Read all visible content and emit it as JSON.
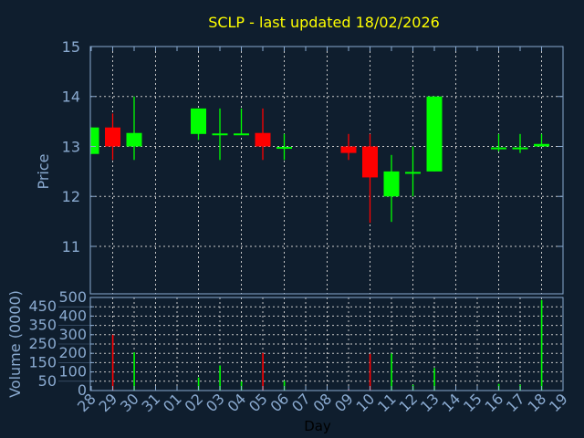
{
  "chart_data": [
    {
      "type": "candlestick",
      "title": "SCLP - last updated 18/02/2026",
      "ylabel": "Price",
      "ylim": [
        10.05,
        15
      ],
      "yticks": [
        11,
        12,
        13,
        14,
        15
      ],
      "grid": true,
      "x_categories": [
        "28",
        "29",
        "30",
        "31",
        "01",
        "02",
        "03",
        "04",
        "05",
        "06",
        "07",
        "08",
        "09",
        "10",
        "11",
        "12",
        "13",
        "14",
        "15",
        "16",
        "17",
        "18",
        "19"
      ],
      "candles": [
        {
          "day": "28",
          "open": 12.85,
          "high": 13.38,
          "low": 12.85,
          "close": 13.38
        },
        {
          "day": "29",
          "open": 13.38,
          "high": 13.66,
          "low": 12.73,
          "close": 13.0
        },
        {
          "day": "30",
          "open": 13.0,
          "high": 14.0,
          "low": 12.73,
          "close": 13.27
        },
        {
          "day": "02",
          "open": 13.25,
          "high": 13.76,
          "low": 13.13,
          "close": 13.76
        },
        {
          "day": "03",
          "open": 13.24,
          "high": 13.76,
          "low": 12.73,
          "close": 13.26
        },
        {
          "day": "04",
          "open": 13.24,
          "high": 13.76,
          "low": 13.24,
          "close": 13.26
        },
        {
          "day": "05",
          "open": 13.27,
          "high": 13.76,
          "low": 12.73,
          "close": 13.0
        },
        {
          "day": "06",
          "open": 12.97,
          "high": 13.25,
          "low": 12.73,
          "close": 12.99
        },
        {
          "day": "09",
          "open": 13.0,
          "high": 13.25,
          "low": 12.73,
          "close": 12.87
        },
        {
          "day": "10",
          "open": 13.0,
          "high": 13.25,
          "low": 11.47,
          "close": 12.38
        },
        {
          "day": "11",
          "open": 12.0,
          "high": 12.83,
          "low": 11.49,
          "close": 12.5
        },
        {
          "day": "12",
          "open": 12.47,
          "high": 13.0,
          "low": 12.0,
          "close": 12.49
        },
        {
          "day": "13",
          "open": 12.5,
          "high": 14.0,
          "low": 12.5,
          "close": 14.0
        },
        {
          "day": "16",
          "open": 12.96,
          "high": 13.25,
          "low": 12.9,
          "close": 12.98
        },
        {
          "day": "17",
          "open": 12.96,
          "high": 13.25,
          "low": 12.87,
          "close": 12.98
        },
        {
          "day": "18",
          "open": 13.0,
          "high": 13.25,
          "low": 13.0,
          "close": 13.05
        }
      ]
    },
    {
      "type": "bar",
      "ylabel": "Volume (0000)",
      "xlabel": "Day",
      "ylim": [
        0,
        500
      ],
      "yticks": [
        0,
        50,
        100,
        150,
        200,
        250,
        300,
        350,
        400,
        450,
        500
      ],
      "grid": true,
      "bars": [
        {
          "day": "29",
          "value": 300,
          "color": "red"
        },
        {
          "day": "30",
          "value": 205,
          "color": "green"
        },
        {
          "day": "02",
          "value": 70,
          "color": "green"
        },
        {
          "day": "03",
          "value": 135,
          "color": "green"
        },
        {
          "day": "04",
          "value": 49,
          "color": "green"
        },
        {
          "day": "05",
          "value": 202,
          "color": "red"
        },
        {
          "day": "06",
          "value": 52,
          "color": "green"
        },
        {
          "day": "09",
          "value": 7,
          "color": "red"
        },
        {
          "day": "10",
          "value": 197,
          "color": "red"
        },
        {
          "day": "11",
          "value": 199,
          "color": "green"
        },
        {
          "day": "12",
          "value": 31,
          "color": "green"
        },
        {
          "day": "13",
          "value": 121,
          "color": "green"
        },
        {
          "day": "16",
          "value": 36,
          "color": "green"
        },
        {
          "day": "17",
          "value": 31,
          "color": "green"
        },
        {
          "day": "18",
          "value": 486,
          "color": "green"
        }
      ]
    }
  ],
  "colors": {
    "background": "#0f1e2e",
    "up": "#00ff00",
    "down": "#ff0000",
    "title": "#ffff00",
    "axis": "#8aaad0",
    "grid": "#c8c8c8"
  }
}
